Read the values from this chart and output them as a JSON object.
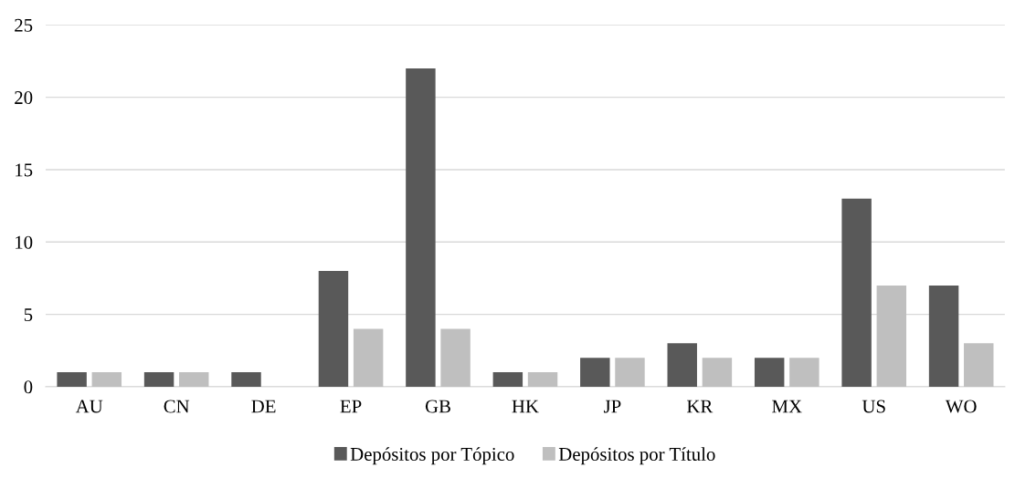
{
  "chart_data": {
    "type": "bar",
    "categories": [
      "AU",
      "CN",
      "DE",
      "EP",
      "GB",
      "HK",
      "JP",
      "KR",
      "MX",
      "US",
      "WO"
    ],
    "series": [
      {
        "name": "Depósitos por Tópico",
        "color": "#595959",
        "values": [
          1,
          1,
          1,
          8,
          22,
          1,
          2,
          3,
          2,
          13,
          7
        ]
      },
      {
        "name": "Depósitos por Título",
        "color": "#bfbfbf",
        "values": [
          1,
          1,
          null,
          4,
          4,
          1,
          2,
          2,
          2,
          7,
          3
        ]
      }
    ],
    "ylim": [
      0,
      25
    ],
    "yticks": [
      0,
      5,
      10,
      15,
      20,
      25
    ],
    "grid": "y",
    "legend": "bottom"
  }
}
